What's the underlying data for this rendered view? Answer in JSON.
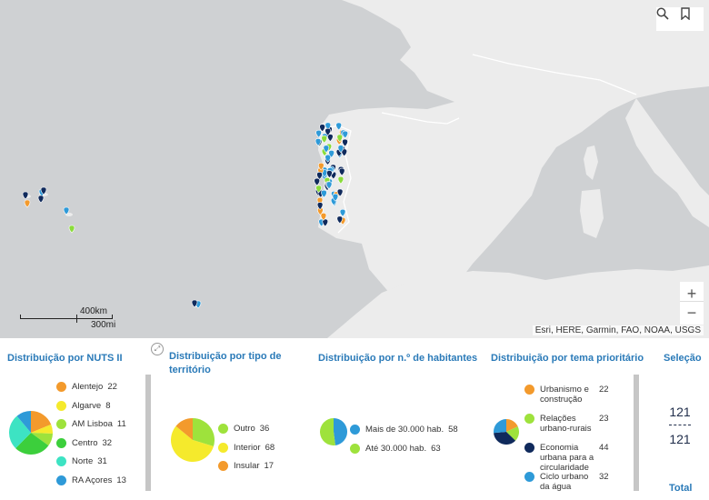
{
  "map": {
    "attribution": "Esri, HERE, Garmin, FAO, NOAA, USGS",
    "scale_km": "400km",
    "scale_mi": "300mi",
    "zoom_in": "+",
    "zoom_out": "−",
    "colors": {
      "land": "#ececec",
      "water": "#cfd1d3",
      "navy": "#102a5c",
      "blue": "#2e9ad8",
      "green": "#8bdc3c",
      "orange": "#f39a2c"
    }
  },
  "panels": {
    "nuts": {
      "title": "Distribuição por NUTS II",
      "items": [
        {
          "label": "Alentejo",
          "count": "22",
          "color": "#f39a2c"
        },
        {
          "label": "Algarve",
          "count": "8",
          "color": "#f5ea2c"
        },
        {
          "label": "AM Lisboa",
          "count": "11",
          "color": "#9ee23c"
        },
        {
          "label": "Centro",
          "count": "32",
          "color": "#3ccf3c"
        },
        {
          "label": "Norte",
          "count": "31",
          "color": "#3de3c3"
        },
        {
          "label": "RA Açores",
          "count": "13",
          "color": "#2e9ad8"
        }
      ]
    },
    "territory": {
      "title": "Distribuição por tipo de território",
      "items": [
        {
          "label": "Outro",
          "count": "36",
          "color": "#9ee23c"
        },
        {
          "label": "Interior",
          "count": "68",
          "color": "#f5ea2c"
        },
        {
          "label": "Insular",
          "count": "17",
          "color": "#f39a2c"
        }
      ]
    },
    "population": {
      "title": "Distribuição por n.º de habitantes",
      "items": [
        {
          "label": "Mais de 30.000 hab.",
          "count": "58",
          "color": "#2e9ad8"
        },
        {
          "label": "Até 30.000 hab.",
          "count": "63",
          "color": "#9ee23c"
        }
      ]
    },
    "theme": {
      "title": "Distribuição por tema prioritário",
      "items": [
        {
          "label": "Urbanismo e construção",
          "count": "22",
          "color": "#f39a2c"
        },
        {
          "label": "Relações urbano-rurais",
          "count": "23",
          "color": "#9ee23c"
        },
        {
          "label": "Economia urbana para a circularidade",
          "count": "44",
          "color": "#102a5c"
        },
        {
          "label": "Ciclo urbano da água",
          "count": "32",
          "color": "#2e9ad8"
        }
      ]
    },
    "selection": {
      "title": "Seleção",
      "selected": "121",
      "total_value": "121",
      "total_label": "Total"
    }
  }
}
